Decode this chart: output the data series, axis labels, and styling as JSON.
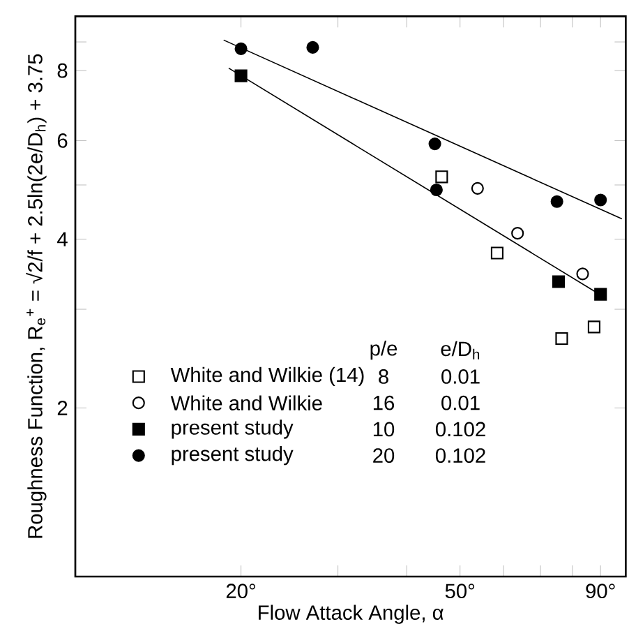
{
  "chart_data": {
    "type": "scatter",
    "xlabel": "Flow Attack Angle, α",
    "ylabel": "Roughness Function,  R$_{e}$$^{+}$ = √2/f + 2.5ln(2e/D$_{h}$) + 3.75",
    "log": "xy",
    "legend": "left",
    "grid": false,
    "xlim": [
      10,
      100
    ],
    "ylim": [
      1,
      10
    ],
    "xticks": [
      {
        "value": 20,
        "label": "20°"
      },
      {
        "value": 30,
        "label": null
      },
      {
        "value": 40,
        "label": null
      },
      {
        "value": 50,
        "label": "50°"
      },
      {
        "value": 60,
        "label": null
      },
      {
        "value": 70,
        "label": null
      },
      {
        "value": 80,
        "label": null
      },
      {
        "value": 90,
        "label": "90°"
      }
    ],
    "yticks": [
      2,
      {
        "value": 3,
        "label": null
      },
      4,
      {
        "value": 5,
        "label": null
      },
      6,
      8,
      {
        "value": 9,
        "label": null
      }
    ],
    "annotations": [
      "p/e",
      "e/D$_{h}$",
      "8",
      "0.01",
      "16",
      "0.01",
      "10",
      "0.102",
      "20",
      "0.102"
    ],
    "series": [
      {
        "name": "White and Wilkie (14)",
        "marker": "square",
        "color": "#ffffff",
        "x": [
          46.3,
          58.4,
          76.5,
          87.6
        ],
        "values": [
          5.17,
          3.78,
          2.66,
          2.79
        ]
      },
      {
        "name": "White and Wilkie",
        "marker": "circle",
        "color": "#ffffff",
        "x": [
          53.8,
          63.6,
          83.5
        ],
        "values": [
          4.93,
          4.1,
          3.47
        ]
      },
      {
        "name": "present study",
        "marker": "square",
        "color": "#000000",
        "x": [
          20,
          75.5,
          90
        ],
        "values": [
          7.83,
          3.36,
          3.19
        ]
      },
      {
        "name": "present study",
        "marker": "circle",
        "color": "#000000",
        "x": [
          20,
          27,
          45,
          45.3,
          75,
          90
        ],
        "values": [
          8.75,
          8.8,
          5.92,
          4.9,
          4.67,
          4.7
        ]
      },
      {
        "type": "line",
        "marker": "none",
        "color": "#000000",
        "x": [
          18.6,
          98.4
        ],
        "values": [
          9.07,
          4.35
        ]
      },
      {
        "type": "line",
        "marker": "none",
        "color": "#000000",
        "x": [
          19.0,
          88.7
        ],
        "values": [
          8.08,
          3.21
        ]
      }
    ]
  }
}
